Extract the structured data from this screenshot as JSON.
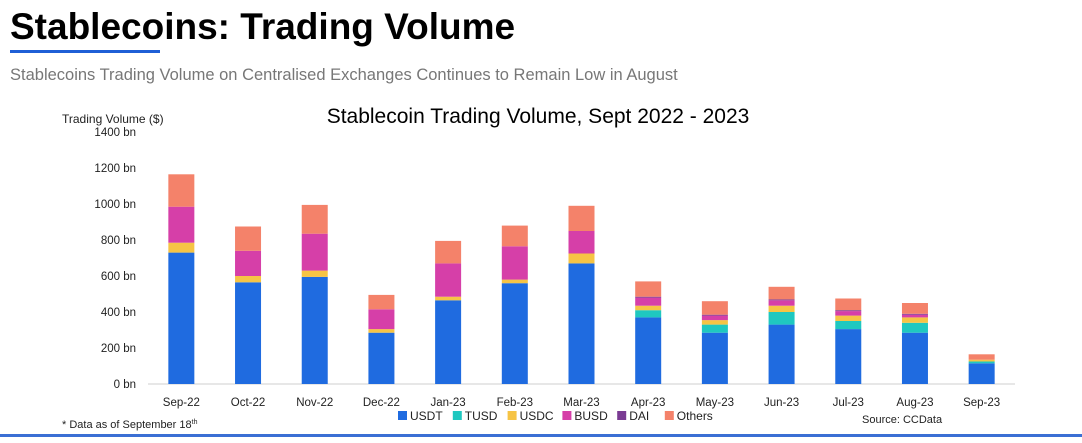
{
  "page": {
    "title": "Stablecoins: Trading Volume",
    "subtitle": "Stablecoins Trading Volume on Centralised Exchanges Continues to Remain Low in August"
  },
  "chart_data": {
    "type": "bar",
    "stacked": true,
    "title": "Stablecoin Trading Volume, Sept 2022 - 2023",
    "ylabel": "Trading Volume ($)",
    "xlabel": "",
    "ylim": [
      0,
      1400
    ],
    "yticks": [
      0,
      200,
      400,
      600,
      800,
      1000,
      1200,
      1400
    ],
    "ytick_labels": [
      "0 bn",
      "200 bn",
      "400 bn",
      "600 bn",
      "800 bn",
      "1000 bn",
      "1200 bn",
      "1400 bn"
    ],
    "grid": false,
    "legend_position": "bottom",
    "categories": [
      "Sep-22",
      "Oct-22",
      "Nov-22",
      "Dec-22",
      "Jan-23",
      "Feb-23",
      "Mar-23",
      "Apr-23",
      "May-23",
      "Jun-23",
      "Jul-23",
      "Aug-23",
      "Sep-23"
    ],
    "series": [
      {
        "name": "USDT",
        "color": "#1f6be0",
        "values": [
          730,
          565,
          595,
          285,
          465,
          560,
          670,
          370,
          285,
          330,
          305,
          285,
          115
        ]
      },
      {
        "name": "TUSD",
        "color": "#1fc8c0",
        "values": [
          0,
          0,
          0,
          0,
          0,
          0,
          0,
          40,
          45,
          70,
          45,
          55,
          10
        ]
      },
      {
        "name": "USDC",
        "color": "#f6c445",
        "values": [
          55,
          35,
          35,
          20,
          20,
          20,
          55,
          25,
          25,
          35,
          30,
          30,
          10
        ]
      },
      {
        "name": "BUSD",
        "color": "#d63fa8",
        "values": [
          200,
          140,
          205,
          110,
          185,
          185,
          125,
          45,
          25,
          30,
          25,
          15,
          0
        ]
      },
      {
        "name": "DAI",
        "color": "#7a3b93",
        "values": [
          0,
          0,
          0,
          0,
          0,
          0,
          0,
          5,
          5,
          5,
          5,
          5,
          0
        ]
      },
      {
        "name": "Others",
        "color": "#f4826a",
        "values": [
          180,
          135,
          160,
          80,
          125,
          115,
          140,
          85,
          75,
          70,
          65,
          60,
          30
        ]
      }
    ],
    "footnote": "* Data as of September 18",
    "footnote_sup": "th",
    "source": "Source: CCData"
  }
}
